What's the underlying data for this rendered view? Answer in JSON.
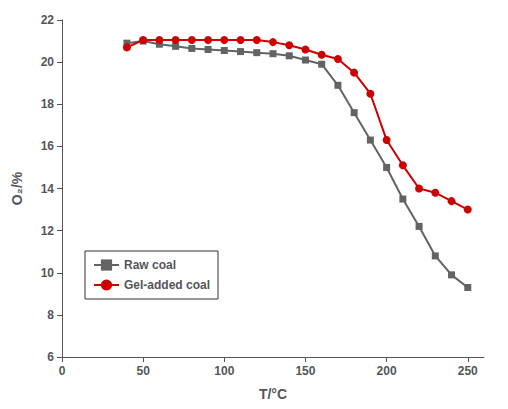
{
  "chart_data": {
    "type": "line",
    "xlabel": "T/°C",
    "ylabel": "O₂/%",
    "xlim": [
      0,
      260
    ],
    "ylim": [
      6,
      22
    ],
    "xticks": [
      0,
      50,
      100,
      150,
      200,
      250
    ],
    "yticks": [
      6,
      8,
      10,
      12,
      14,
      16,
      18,
      20,
      22
    ],
    "grid": false,
    "legend": "lower left",
    "series": [
      {
        "name": "Raw coal",
        "color": "#636363",
        "marker": "square",
        "line_style": "solid",
        "x": [
          40,
          50,
          60,
          70,
          80,
          90,
          100,
          110,
          120,
          130,
          140,
          150,
          160,
          170,
          180,
          190,
          200,
          210,
          220,
          230,
          240,
          250
        ],
        "values": [
          20.9,
          21.0,
          20.85,
          20.75,
          20.65,
          20.6,
          20.55,
          20.5,
          20.45,
          20.4,
          20.3,
          20.1,
          19.9,
          18.9,
          17.6,
          16.3,
          15.0,
          13.5,
          12.2,
          10.8,
          9.9,
          9.3
        ]
      },
      {
        "name": "Gel-added coal",
        "color": "#cc0000",
        "marker": "circle",
        "line_style": "solid",
        "x": [
          40,
          50,
          60,
          70,
          80,
          90,
          100,
          110,
          120,
          130,
          140,
          150,
          160,
          170,
          180,
          190,
          200,
          210,
          220,
          230,
          240,
          250
        ],
        "values": [
          20.7,
          21.05,
          21.05,
          21.05,
          21.05,
          21.05,
          21.05,
          21.05,
          21.05,
          20.95,
          20.8,
          20.6,
          20.35,
          20.15,
          19.5,
          18.5,
          16.3,
          15.1,
          14.0,
          13.8,
          13.4,
          13.0
        ]
      }
    ]
  }
}
